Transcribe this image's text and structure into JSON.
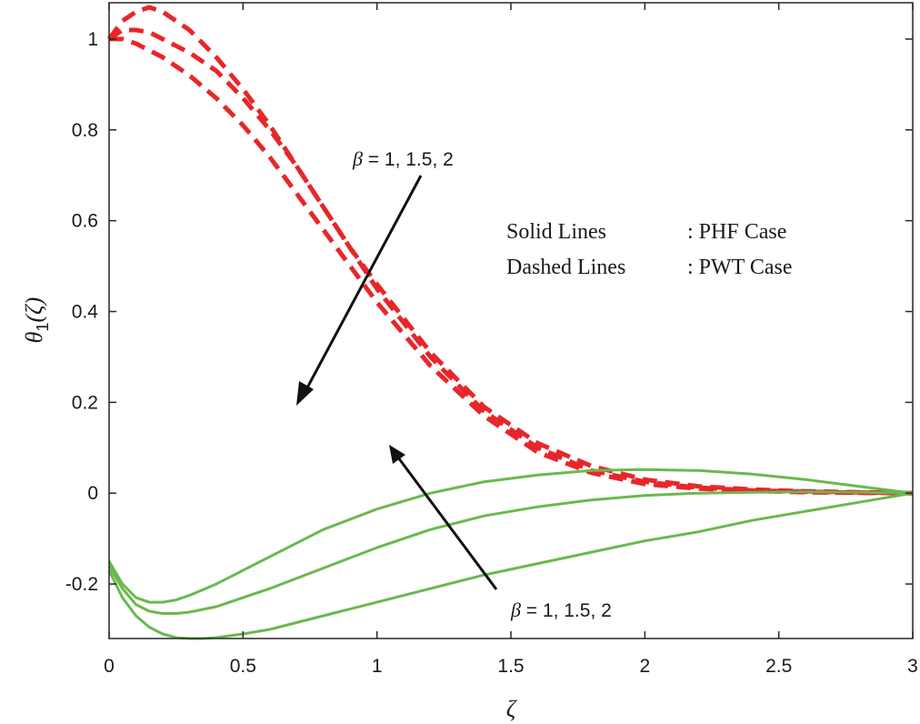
{
  "chart_data": {
    "type": "line",
    "title": "",
    "xlabel": "ζ",
    "ylabel": {
      "base": "θ",
      "sub": "1",
      "arg": "(ζ)"
    },
    "xlim": [
      0,
      3
    ],
    "ylim": [
      -0.32,
      1.08
    ],
    "xticks": [
      "0",
      "0.5",
      "1",
      "1.5",
      "2",
      "2.5",
      "3"
    ],
    "yticks": [
      "-0.2",
      "0",
      "0.2",
      "0.4",
      "0.6",
      "0.8",
      "1"
    ],
    "grid": false,
    "legend": [
      {
        "label": "Solid Lines",
        "value": ": PHF Case"
      },
      {
        "label": "Dashed Lines",
        "value": ": PWT Case"
      }
    ],
    "annotations": [
      {
        "symbol": "β",
        "text": " = 1, 1.5, 2",
        "target": "dashed"
      },
      {
        "symbol": "β",
        "text": " = 1, 1.5, 2",
        "target": "solid"
      }
    ],
    "colors": {
      "solid": "#6ab94e",
      "dashed": "#e8262a",
      "arrow": "#111111"
    },
    "series": [
      {
        "style": "dashed",
        "x": [
          0,
          0.05,
          0.1,
          0.15,
          0.2,
          0.3,
          0.4,
          0.5,
          0.6,
          0.7,
          0.8,
          0.9,
          1.0,
          1.2,
          1.4,
          1.6,
          1.8,
          2.0,
          2.2,
          2.4,
          2.6,
          2.8,
          3.0
        ],
        "y": [
          1.0,
          1.02,
          1.02,
          1.015,
          1.0,
          0.97,
          0.93,
          0.87,
          0.8,
          0.72,
          0.63,
          0.54,
          0.46,
          0.31,
          0.19,
          0.11,
          0.06,
          0.03,
          0.015,
          0.008,
          0.004,
          0.002,
          0
        ]
      },
      {
        "style": "dashed",
        "x": [
          0,
          0.05,
          0.1,
          0.15,
          0.2,
          0.3,
          0.4,
          0.5,
          0.6,
          0.7,
          0.8,
          0.9,
          1.0,
          1.2,
          1.4,
          1.6,
          1.8,
          2.0,
          2.2,
          2.4,
          2.6,
          2.8,
          3.0
        ],
        "y": [
          1.0,
          1.04,
          1.06,
          1.07,
          1.06,
          1.02,
          0.96,
          0.89,
          0.81,
          0.72,
          0.63,
          0.54,
          0.45,
          0.3,
          0.18,
          0.1,
          0.05,
          0.025,
          0.012,
          0.006,
          0.003,
          0.001,
          0
        ]
      },
      {
        "style": "dashed",
        "x": [
          0,
          0.05,
          0.1,
          0.15,
          0.2,
          0.3,
          0.4,
          0.5,
          0.6,
          0.7,
          0.8,
          0.9,
          1.0,
          1.2,
          1.4,
          1.6,
          1.8,
          2.0,
          2.2,
          2.4,
          2.6,
          2.8,
          3.0
        ],
        "y": [
          1.0,
          1.0,
          0.99,
          0.975,
          0.96,
          0.92,
          0.87,
          0.81,
          0.74,
          0.66,
          0.58,
          0.5,
          0.42,
          0.28,
          0.17,
          0.09,
          0.045,
          0.02,
          0.01,
          0.005,
          0.002,
          0.001,
          0
        ]
      },
      {
        "style": "solid",
        "x": [
          0,
          0.05,
          0.1,
          0.15,
          0.2,
          0.25,
          0.3,
          0.4,
          0.5,
          0.6,
          0.8,
          1.0,
          1.2,
          1.4,
          1.6,
          1.8,
          2.0,
          2.2,
          2.4,
          2.6,
          2.8,
          3.0
        ],
        "y": [
          -0.15,
          -0.2,
          -0.23,
          -0.24,
          -0.24,
          -0.235,
          -0.225,
          -0.2,
          -0.17,
          -0.14,
          -0.08,
          -0.035,
          0.0,
          0.025,
          0.04,
          0.05,
          0.052,
          0.05,
          0.042,
          0.03,
          0.015,
          0
        ]
      },
      {
        "style": "solid",
        "x": [
          0,
          0.05,
          0.1,
          0.15,
          0.2,
          0.25,
          0.3,
          0.4,
          0.5,
          0.6,
          0.8,
          1.0,
          1.2,
          1.4,
          1.6,
          1.8,
          2.0,
          2.2,
          2.4,
          2.6,
          2.8,
          3.0
        ],
        "y": [
          -0.16,
          -0.21,
          -0.245,
          -0.26,
          -0.265,
          -0.265,
          -0.262,
          -0.25,
          -0.23,
          -0.21,
          -0.165,
          -0.12,
          -0.08,
          -0.05,
          -0.03,
          -0.015,
          -0.005,
          0.0,
          0.002,
          0.003,
          0.002,
          0
        ]
      },
      {
        "style": "solid",
        "x": [
          0,
          0.05,
          0.1,
          0.15,
          0.2,
          0.25,
          0.3,
          0.35,
          0.4,
          0.5,
          0.6,
          0.8,
          1.0,
          1.2,
          1.4,
          1.6,
          1.8,
          2.0,
          2.2,
          2.4,
          2.6,
          2.8,
          3.0
        ],
        "y": [
          -0.17,
          -0.23,
          -0.27,
          -0.295,
          -0.31,
          -0.318,
          -0.32,
          -0.32,
          -0.318,
          -0.31,
          -0.3,
          -0.27,
          -0.24,
          -0.21,
          -0.18,
          -0.155,
          -0.13,
          -0.105,
          -0.085,
          -0.06,
          -0.04,
          -0.02,
          0
        ]
      }
    ]
  }
}
